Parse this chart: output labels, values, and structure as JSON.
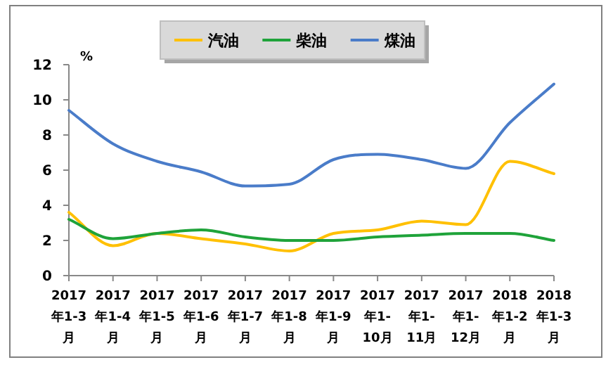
{
  "chart_data": {
    "type": "line",
    "ylabel": "%",
    "categories": [
      "2017年1-3月",
      "2017年1-4月",
      "2017年1-5月",
      "2017年1-6月",
      "2017年1-7月",
      "2017年1-8月",
      "2017年1-9月",
      "2017年1-10月",
      "2017年1-11月",
      "2017年1-12月",
      "2018年1-2月",
      "2018年1-3月"
    ],
    "series": [
      {
        "name": "汽油",
        "color": "#ffc000",
        "values": [
          3.6,
          1.7,
          2.4,
          2.1,
          1.8,
          1.4,
          2.4,
          2.6,
          3.1,
          2.9,
          6.5,
          5.8
        ]
      },
      {
        "name": "柴油",
        "color": "#1fa33a",
        "values": [
          3.2,
          2.1,
          2.4,
          2.6,
          2.2,
          2.0,
          2.0,
          2.2,
          2.3,
          2.4,
          2.4,
          2.0
        ]
      },
      {
        "name": "煤油",
        "color": "#4a7cc9",
        "values": [
          9.4,
          7.5,
          6.5,
          5.9,
          5.1,
          5.2,
          6.6,
          6.9,
          6.6,
          6.1,
          8.7,
          10.9
        ]
      }
    ],
    "ylim": [
      0,
      12
    ],
    "yticks": [
      0,
      2,
      4,
      6,
      8,
      10,
      12
    ],
    "grid": false,
    "legend": "top",
    "marker": "none",
    "line_style": "solid"
  }
}
